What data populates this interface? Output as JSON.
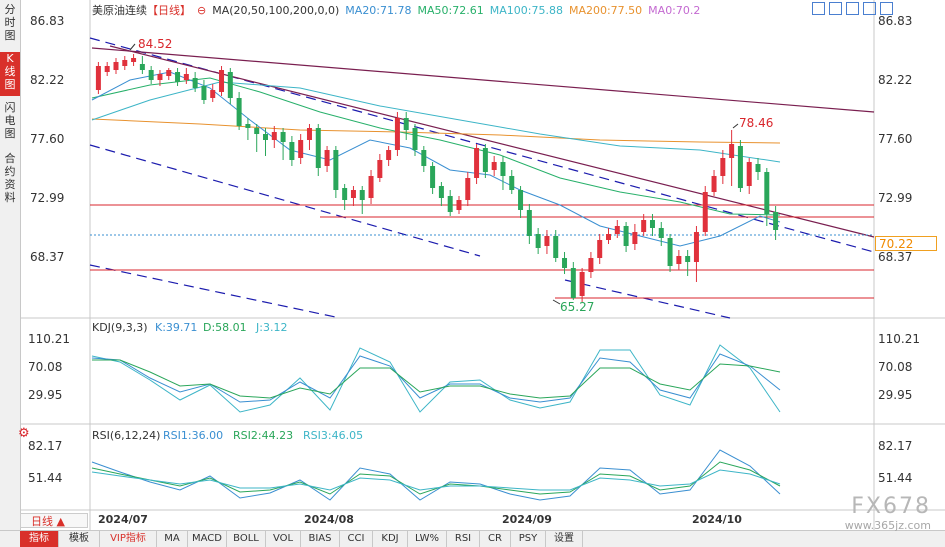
{
  "sidebar": {
    "tabs": [
      {
        "label": "分\n时\n图",
        "active": false
      },
      {
        "label": "K\n线\n图",
        "active": true
      },
      {
        "label": "闪\n电\n图",
        "active": false
      },
      {
        "label": "合\n约\n资\n料",
        "active": false
      }
    ]
  },
  "header": {
    "title": "美原油连续",
    "period": "【日线】",
    "ma_label": "MA(20,50,100,200,0,0)",
    "ma20": "MA20:71.78",
    "ma50": "MA50:72.61",
    "ma100": "MA100:75.88",
    "ma200": "MA200:77.50",
    "ma0": "MA0:70.2"
  },
  "toolbar_icons": [
    "move-icon",
    "zoom-in-icon",
    "zoom-out-icon",
    "fullscreen-icon",
    "grid-icon"
  ],
  "price_axis": {
    "labels": [
      "86.83",
      "82.22",
      "77.60",
      "72.99",
      "68.37"
    ],
    "current_price": "70.22"
  },
  "annotations": {
    "high": "84.52",
    "high2": "78.46",
    "low": "65.27"
  },
  "kdj": {
    "title": "KDJ(9,3,3)",
    "k": "K:39.71",
    "d": "D:58.01",
    "j": "J:3.12",
    "axis_labels": [
      "110.21",
      "70.08",
      "29.95"
    ]
  },
  "rsi": {
    "title": "RSI(6,12,24)",
    "rsi1": "RSI1:36.00",
    "rsi2": "RSI2:44.23",
    "rsi3": "RSI3:46.05",
    "axis_labels": [
      "82.17",
      "51.44"
    ]
  },
  "date_axis": [
    "2024/07",
    "2024/08",
    "2024/09",
    "2024/10"
  ],
  "period_select": "日线 ▲",
  "bottom_tabs": [
    {
      "label": "指标",
      "selected": true
    },
    {
      "label": "模板"
    },
    {
      "label": "VIP指标",
      "vip": true
    },
    {
      "label": "MA"
    },
    {
      "label": "MACD"
    },
    {
      "label": "BOLL"
    },
    {
      "label": "VOL"
    },
    {
      "label": "BIAS"
    },
    {
      "label": "CCI"
    },
    {
      "label": "KDJ"
    },
    {
      "label": "LW%"
    },
    {
      "label": "RSI"
    },
    {
      "label": "CR"
    },
    {
      "label": "PSY"
    },
    {
      "label": "设置"
    }
  ],
  "watermark": {
    "brand": "FX678",
    "url": "www.365jz.com"
  },
  "colors": {
    "up": "#e0313c",
    "down": "#2aa65a",
    "ma20": "#3a8fd1",
    "ma50": "#27b06a",
    "ma100": "#3db5c7",
    "ma200": "#e8922f",
    "ma0": "#c46ad1",
    "channel": "#1c1cae",
    "trend": "#7a1f50",
    "support": "#d9262c",
    "accent": "#d9302a"
  }
}
